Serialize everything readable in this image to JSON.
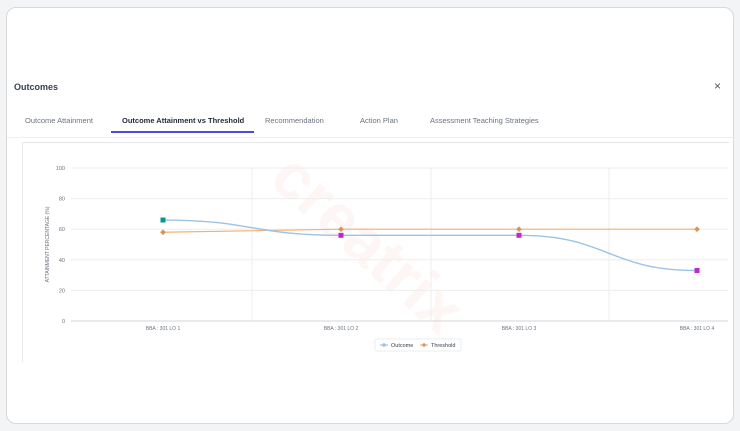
{
  "dialog": {
    "title": "Outcomes",
    "close_label": "×"
  },
  "tabs": [
    {
      "label": "Outcome Attainment",
      "active": false
    },
    {
      "label": "Outcome Attainment vs Threshold",
      "active": true
    },
    {
      "label": "Recommendation",
      "active": false
    },
    {
      "label": "Action Plan",
      "active": false
    },
    {
      "label": "Assessment Teaching Strategies",
      "active": false
    }
  ],
  "colors": {
    "outcome_line": "#9cc3e6",
    "outcome_point_first": "#0d9488",
    "outcome_point": "#c026d3",
    "threshold_line": "#f5b070",
    "threshold_point": "#d9935a",
    "tab_accent": "#4f46e5"
  },
  "chart_data": {
    "type": "line",
    "categories": [
      "BBA : 301 LO 1",
      "BBA : 301 LO 2",
      "BBA : 301 LO 3",
      "BBA : 301 LO 4"
    ],
    "series": [
      {
        "name": "Outcome",
        "values": [
          66,
          56,
          56,
          33
        ]
      },
      {
        "name": "Threshold",
        "values": [
          58,
          60,
          60,
          60
        ]
      }
    ],
    "ylabel": "ATTAINMENT PERCENTAGE (%)",
    "yticks": [
      0,
      20,
      40,
      60,
      80,
      100
    ],
    "ylim": [
      0,
      100
    ],
    "grid": true,
    "legend_position": "bottom"
  }
}
